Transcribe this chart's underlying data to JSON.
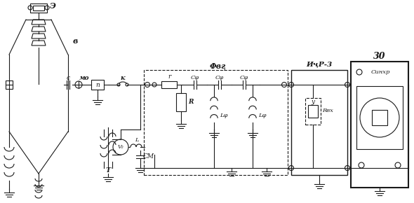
{
  "bg_color": "#ffffff",
  "line_color": "#1a1a1a",
  "fig_width": 5.9,
  "fig_height": 2.9,
  "labels": {
    "E": "Э",
    "B": "в",
    "MO": "мо",
    "C": "c",
    "K": "к",
    "n": "п",
    "V0": "V₀",
    "T": "T",
    "CM": "CМ",
    "L": "L",
    "FVC": "Φвӷ",
    "r": "r",
    "R": "R",
    "Cf1": "Cφ",
    "Cf2": "Cφ",
    "Cf3": "Cφ",
    "Lf1": "Lφ",
    "Lf2": "Lφ",
    "ICR": "ИҷР-3",
    "y": "у",
    "Rvx": "Rвх",
    "ZO": "30",
    "Synchro": "Cинхр"
  }
}
